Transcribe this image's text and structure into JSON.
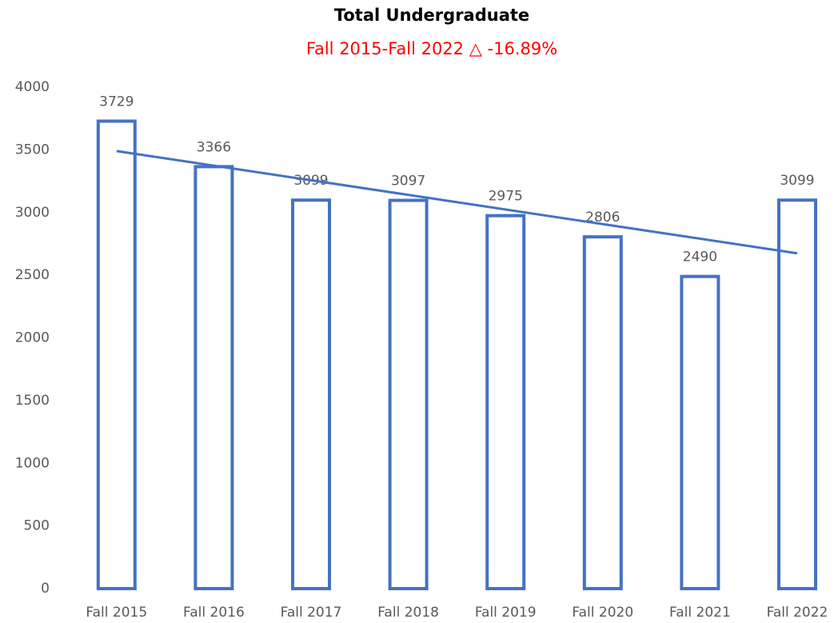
{
  "chart_data": {
    "type": "bar",
    "title": "Total Undergraduate",
    "subtitle": "Fall 2015-Fall 2022 △ -16.89%",
    "categories": [
      "Fall 2015",
      "Fall 2016",
      "Fall 2017",
      "Fall 2018",
      "Fall 2019",
      "Fall 2020",
      "Fall 2021",
      "Fall 2022"
    ],
    "values": [
      3729,
      3366,
      3099,
      3097,
      2975,
      2806,
      2490,
      3099
    ],
    "color": "#4472c4",
    "trendline": "linear",
    "ylim": [
      0,
      4000
    ],
    "yticks": [
      0,
      500,
      1000,
      1500,
      2000,
      2500,
      3000,
      3500,
      4000
    ],
    "grid": false
  }
}
